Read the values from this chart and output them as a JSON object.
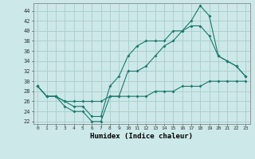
{
  "xlabel": "Humidex (Indice chaleur)",
  "background_color": "#cce8e8",
  "line_color": "#1a7a6e",
  "grid_color": "#aacccc",
  "xlim": [
    -0.5,
    23.5
  ],
  "ylim": [
    21.5,
    45.5
  ],
  "yticks": [
    22,
    24,
    26,
    28,
    30,
    32,
    34,
    36,
    38,
    40,
    42,
    44
  ],
  "xticks": [
    0,
    1,
    2,
    3,
    4,
    5,
    6,
    7,
    8,
    9,
    10,
    11,
    12,
    13,
    14,
    15,
    16,
    17,
    18,
    19,
    20,
    21,
    22,
    23
  ],
  "line1_x": [
    0,
    1,
    2,
    3,
    4,
    5,
    6,
    7,
    8,
    9,
    10,
    11,
    12,
    13,
    14,
    15,
    16,
    17,
    18,
    19,
    20,
    21,
    22,
    23
  ],
  "line1_y": [
    29,
    27,
    27,
    25,
    24,
    24,
    22,
    22,
    27,
    27,
    32,
    32,
    33,
    35,
    37,
    38,
    40,
    41,
    41,
    39,
    35,
    34,
    33,
    31
  ],
  "line2_x": [
    0,
    1,
    2,
    3,
    4,
    5,
    6,
    7,
    8,
    9,
    10,
    11,
    12,
    13,
    14,
    15,
    16,
    17,
    18,
    19,
    20,
    21,
    22,
    23
  ],
  "line2_y": [
    29,
    27,
    27,
    26,
    25,
    25,
    23,
    23,
    29,
    31,
    35,
    37,
    38,
    38,
    38,
    40,
    40,
    42,
    45,
    43,
    35,
    34,
    33,
    31
  ],
  "line3_x": [
    0,
    1,
    2,
    3,
    4,
    5,
    6,
    7,
    8,
    9,
    10,
    11,
    12,
    13,
    14,
    15,
    16,
    17,
    18,
    19,
    20,
    21,
    22,
    23
  ],
  "line3_y": [
    29,
    27,
    27,
    26,
    26,
    26,
    26,
    26,
    27,
    27,
    27,
    27,
    27,
    28,
    28,
    28,
    29,
    29,
    29,
    30,
    30,
    30,
    30,
    30
  ]
}
